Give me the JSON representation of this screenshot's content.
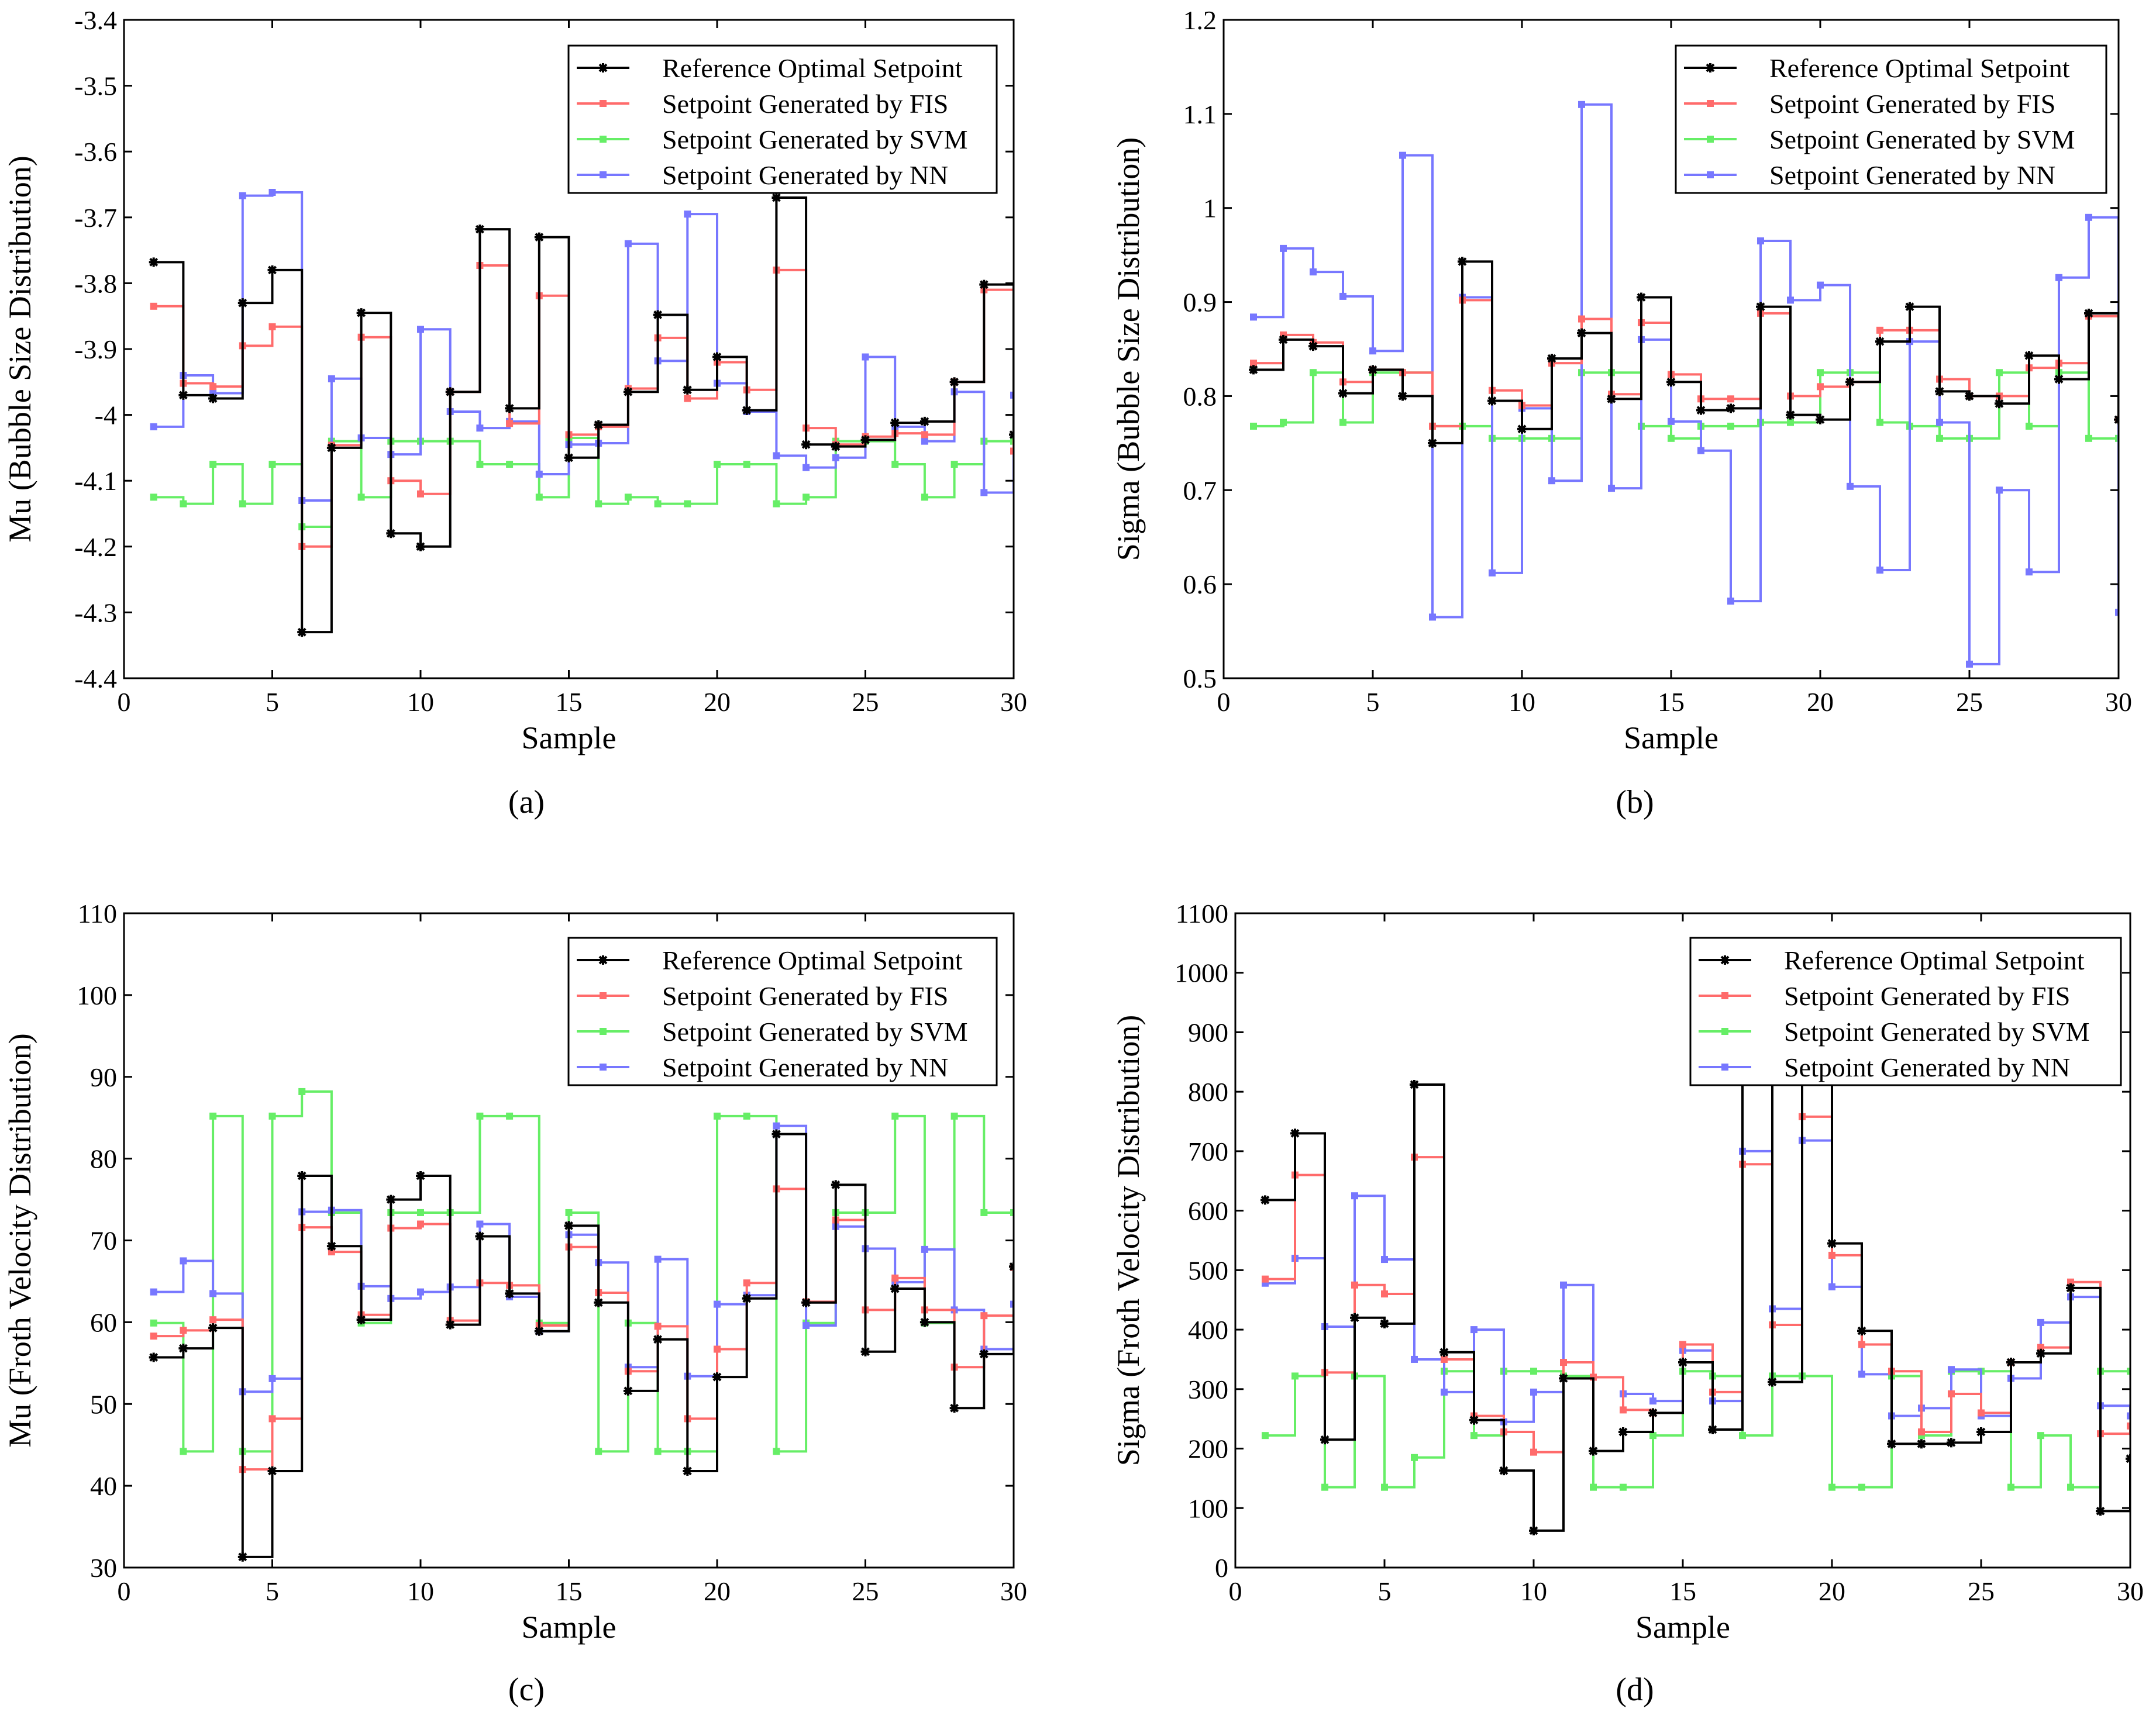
{
  "colors": {
    "reference": "#000000",
    "fis": "#ff6b6b",
    "svm": "#66ee66",
    "nn": "#7777ff"
  },
  "chart_data": [
    {
      "type": "line",
      "caption": "(a)",
      "xlabel": "Sample",
      "ylabel": "Mu (Bubble Size Distribution)",
      "xlim": [
        0,
        30
      ],
      "ylim": [
        -4.4,
        -3.4
      ],
      "xticks": [
        0,
        5,
        10,
        15,
        20,
        25,
        30
      ],
      "xtick_labels": [
        "0",
        "5",
        "10",
        "15",
        "20",
        "25",
        "30"
      ],
      "yticks": [
        -4.4,
        -4.3,
        -4.2,
        -4.1,
        -4.0,
        -3.9,
        -3.8,
        -3.7,
        -3.6,
        -3.5,
        -3.4
      ],
      "ytick_labels": [
        "-4.4",
        "-4.3",
        "-4.2",
        "-4.1",
        "-4",
        "-3.9",
        "-3.8",
        "-3.7",
        "-3.6",
        "-3.5",
        "-3.4"
      ],
      "legend_position": "top-right",
      "series": [
        {
          "name": "Reference Optimal Setpoint",
          "color_key": "reference",
          "marker": "star",
          "values": [
            -3.768,
            -3.97,
            -3.975,
            -3.83,
            -3.78,
            -4.33,
            -4.05,
            -3.845,
            -4.18,
            -4.2,
            -3.965,
            -3.718,
            -3.99,
            -3.73,
            -4.065,
            -4.015,
            -3.965,
            -3.848,
            -3.962,
            -3.912,
            -3.993,
            -3.67,
            -4.045,
            -4.048,
            -4.038,
            -4.012,
            -4.01,
            -3.95,
            -3.802,
            -4.03
          ]
        },
        {
          "name": "Setpoint Generated by FIS",
          "color_key": "fis",
          "marker": "square",
          "values": [
            -3.835,
            -3.952,
            -3.957,
            -3.895,
            -3.866,
            -4.2,
            -4.046,
            -3.882,
            -4.1,
            -4.12,
            -3.965,
            -3.773,
            -4.013,
            -3.819,
            -4.03,
            -4.018,
            -3.96,
            -3.883,
            -3.975,
            -3.92,
            -3.962,
            -3.78,
            -4.02,
            -4.045,
            -4.033,
            -4.028,
            -4.03,
            -3.95,
            -3.81,
            -4.055
          ]
        },
        {
          "name": "Setpoint Generated by SVM",
          "color_key": "svm",
          "marker": "square",
          "values": [
            -4.125,
            -4.135,
            -4.075,
            -4.135,
            -4.075,
            -4.17,
            -4.04,
            -4.125,
            -4.04,
            -4.04,
            -4.04,
            -4.075,
            -4.075,
            -4.125,
            -4.035,
            -4.135,
            -4.125,
            -4.135,
            -4.135,
            -4.075,
            -4.075,
            -4.135,
            -4.125,
            -4.04,
            -4.04,
            -4.075,
            -4.125,
            -4.075,
            -4.04,
            -4.04
          ]
        },
        {
          "name": "Setpoint Generated by NN",
          "color_key": "nn",
          "marker": "square",
          "values": [
            -4.018,
            -3.94,
            -3.967,
            -3.667,
            -3.662,
            -4.13,
            -3.945,
            -4.035,
            -4.06,
            -3.87,
            -3.995,
            -4.02,
            -4.01,
            -4.09,
            -4.045,
            -4.043,
            -3.74,
            -3.918,
            -3.695,
            -3.952,
            -3.995,
            -4.062,
            -4.08,
            -4.065,
            -3.912,
            -4.018,
            -4.04,
            -3.965,
            -4.118,
            -3.97
          ]
        }
      ]
    },
    {
      "type": "line",
      "caption": "(b)",
      "xlabel": "Sample",
      "ylabel": "Sigma (Bubble Size Distribution)",
      "xlim": [
        0,
        30
      ],
      "ylim": [
        0.5,
        1.2
      ],
      "xticks": [
        0,
        5,
        10,
        15,
        20,
        25,
        30
      ],
      "xtick_labels": [
        "0",
        "5",
        "10",
        "15",
        "20",
        "25",
        "30"
      ],
      "yticks": [
        0.5,
        0.6,
        0.7,
        0.8,
        0.9,
        1.0,
        1.1,
        1.2
      ],
      "ytick_labels": [
        "0.5",
        "0.6",
        "0.7",
        "0.8",
        "0.9",
        "1",
        "1.1",
        "1.2"
      ],
      "legend_position": "top-right",
      "series": [
        {
          "name": "Reference Optimal Setpoint",
          "color_key": "reference",
          "marker": "star",
          "values": [
            0.828,
            0.86,
            0.853,
            0.803,
            0.828,
            0.8,
            0.75,
            0.943,
            0.795,
            0.765,
            0.84,
            0.867,
            0.797,
            0.905,
            0.815,
            0.785,
            0.787,
            0.895,
            0.78,
            0.775,
            0.815,
            0.858,
            0.895,
            0.805,
            0.8,
            0.792,
            0.843,
            0.818,
            0.888,
            0.775
          ]
        },
        {
          "name": "Setpoint Generated by FIS",
          "color_key": "fis",
          "marker": "square",
          "values": [
            0.835,
            0.865,
            0.857,
            0.815,
            0.828,
            0.825,
            0.768,
            0.902,
            0.806,
            0.79,
            0.835,
            0.882,
            0.802,
            0.878,
            0.823,
            0.797,
            0.797,
            0.888,
            0.8,
            0.81,
            0.815,
            0.87,
            0.87,
            0.818,
            0.8,
            0.8,
            0.83,
            0.835,
            0.885,
            0.775
          ]
        },
        {
          "name": "Setpoint Generated by SVM",
          "color_key": "svm",
          "marker": "square",
          "values": [
            0.768,
            0.772,
            0.825,
            0.772,
            0.825,
            0.825,
            0.768,
            0.768,
            0.755,
            0.755,
            0.755,
            0.825,
            0.825,
            0.768,
            0.755,
            0.768,
            0.768,
            0.772,
            0.772,
            0.825,
            0.825,
            0.772,
            0.768,
            0.755,
            0.755,
            0.825,
            0.768,
            0.825,
            0.755,
            0.755
          ]
        },
        {
          "name": "Setpoint Generated by NN",
          "color_key": "nn",
          "marker": "square",
          "values": [
            0.884,
            0.957,
            0.932,
            0.906,
            0.848,
            1.056,
            0.565,
            0.905,
            0.612,
            0.787,
            0.71,
            1.11,
            0.702,
            0.86,
            0.773,
            0.742,
            0.582,
            0.965,
            0.902,
            0.918,
            0.704,
            0.615,
            0.858,
            0.772,
            0.515,
            0.7,
            0.613,
            0.926,
            0.99,
            0.57
          ]
        }
      ]
    },
    {
      "type": "line",
      "caption": "(c)",
      "xlabel": "Sample",
      "ylabel": "Mu (Froth Velocity Distribution)",
      "xlim": [
        0,
        30
      ],
      "ylim": [
        30,
        110
      ],
      "xticks": [
        0,
        5,
        10,
        15,
        20,
        25,
        30
      ],
      "xtick_labels": [
        "0",
        "5",
        "10",
        "15",
        "20",
        "25",
        "30"
      ],
      "yticks": [
        30,
        40,
        50,
        60,
        70,
        80,
        90,
        100,
        110
      ],
      "ytick_labels": [
        "30",
        "40",
        "50",
        "60",
        "70",
        "80",
        "90",
        "100",
        "110"
      ],
      "legend_position": "top-right",
      "series": [
        {
          "name": "Reference Optimal Setpoint",
          "color_key": "reference",
          "marker": "star",
          "values": [
            55.7,
            56.8,
            59.3,
            31.3,
            41.8,
            77.9,
            69.3,
            60.3,
            75.0,
            77.9,
            59.7,
            70.5,
            63.5,
            58.9,
            71.8,
            62.4,
            51.6,
            57.9,
            41.8,
            53.3,
            62.9,
            83.0,
            62.4,
            76.8,
            56.4,
            64.1,
            60.0,
            49.5,
            56.1,
            66.8
          ]
        },
        {
          "name": "Setpoint Generated by FIS",
          "color_key": "fis",
          "marker": "square",
          "values": [
            58.3,
            59.0,
            60.3,
            42.0,
            48.2,
            71.6,
            68.6,
            60.9,
            71.5,
            72.0,
            60.2,
            64.8,
            64.5,
            59.6,
            69.2,
            63.6,
            54.0,
            59.5,
            48.2,
            56.7,
            64.8,
            76.3,
            62.5,
            72.5,
            61.5,
            65.4,
            61.5,
            54.5,
            60.8,
            66.7
          ]
        },
        {
          "name": "Setpoint Generated by SVM",
          "color_key": "svm",
          "marker": "square",
          "values": [
            59.9,
            44.2,
            85.2,
            44.2,
            85.2,
            88.2,
            73.4,
            59.9,
            73.4,
            73.4,
            73.4,
            85.2,
            85.2,
            59.9,
            73.4,
            44.2,
            59.9,
            44.2,
            44.2,
            85.2,
            85.2,
            44.2,
            59.9,
            73.4,
            73.4,
            85.2,
            59.9,
            85.2,
            73.4,
            73.4
          ]
        },
        {
          "name": "Setpoint Generated by NN",
          "color_key": "nn",
          "marker": "square",
          "values": [
            63.7,
            67.5,
            63.5,
            51.5,
            53.1,
            73.5,
            73.7,
            64.4,
            62.9,
            63.7,
            64.3,
            72.0,
            63.1,
            58.9,
            70.7,
            67.3,
            54.5,
            67.7,
            53.4,
            62.2,
            63.3,
            84.0,
            59.6,
            71.7,
            69.0,
            64.9,
            68.9,
            61.5,
            56.7,
            62.2
          ]
        }
      ]
    },
    {
      "type": "line",
      "caption": "(d)",
      "xlabel": "Sample",
      "ylabel": "Sigma (Froth Velocity Distribution)",
      "xlim": [
        0,
        30
      ],
      "ylim": [
        0,
        1100
      ],
      "xticks": [
        0,
        5,
        10,
        15,
        20,
        25,
        30
      ],
      "xtick_labels": [
        "0",
        "5",
        "10",
        "15",
        "20",
        "25",
        "30"
      ],
      "yticks": [
        0,
        100,
        200,
        300,
        400,
        500,
        600,
        700,
        800,
        900,
        1000,
        1100
      ],
      "ytick_labels": [
        "0",
        "100",
        "200",
        "300",
        "400",
        "500",
        "600",
        "700",
        "800",
        "900",
        "1000",
        "1100"
      ],
      "legend_position": "top-right",
      "series": [
        {
          "name": "Reference Optimal Setpoint",
          "color_key": "reference",
          "marker": "star",
          "values": [
            618,
            730,
            215,
            420,
            410,
            812,
            362,
            248,
            163,
            62,
            318,
            196,
            228,
            260,
            345,
            232,
            822,
            312,
            1000,
            545,
            398,
            208,
            208,
            210,
            228,
            345,
            360,
            470,
            95,
            183
          ]
        },
        {
          "name": "Setpoint Generated by FIS",
          "color_key": "fis",
          "marker": "square",
          "values": [
            485,
            660,
            328,
            475,
            460,
            690,
            350,
            255,
            228,
            194,
            345,
            320,
            265,
            260,
            375,
            295,
            678,
            408,
            758,
            525,
            375,
            330,
            228,
            292,
            260,
            345,
            370,
            480,
            225,
            238
          ]
        },
        {
          "name": "Setpoint Generated by SVM",
          "color_key": "svm",
          "marker": "square",
          "values": [
            222,
            322,
            135,
            322,
            135,
            185,
            330,
            222,
            330,
            330,
            322,
            135,
            135,
            222,
            330,
            322,
            222,
            322,
            322,
            135,
            135,
            322,
            222,
            330,
            330,
            135,
            222,
            135,
            330,
            330
          ]
        },
        {
          "name": "Setpoint Generated by NN",
          "color_key": "nn",
          "marker": "square",
          "values": [
            478,
            520,
            405,
            625,
            518,
            350,
            295,
            400,
            245,
            295,
            475,
            320,
            292,
            280,
            365,
            280,
            700,
            435,
            718,
            472,
            325,
            255,
            268,
            333,
            255,
            318,
            412,
            455,
            272,
            255
          ]
        }
      ]
    }
  ]
}
